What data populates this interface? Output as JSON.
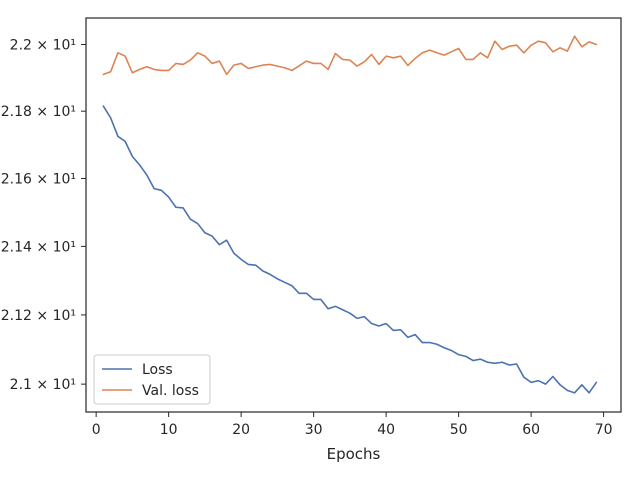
{
  "chart_data": {
    "type": "line",
    "title": "",
    "xlabel": "Epochs",
    "ylabel": "",
    "yscale": "log",
    "xlim": [
      -1.4,
      72.4
    ],
    "ylim": [
      20.92,
      22.08
    ],
    "grid": false,
    "legend_position": "lower-left",
    "x_ticks": [
      0,
      10,
      20,
      30,
      40,
      50,
      60,
      70
    ],
    "x_tick_labels": [
      "0",
      "10",
      "20",
      "30",
      "40",
      "50",
      "60",
      "70"
    ],
    "y_ticks": [
      21.0,
      21.2,
      21.4,
      21.6,
      21.8,
      22.0
    ],
    "y_tick_labels": [
      "2.1 × 10¹",
      "2.12 × 10¹",
      "2.14 × 10¹",
      "2.16 × 10¹",
      "2.18 × 10¹",
      "2.2 × 10¹"
    ],
    "x": [
      1,
      2,
      3,
      4,
      5,
      6,
      7,
      8,
      9,
      10,
      11,
      12,
      13,
      14,
      15,
      16,
      17,
      18,
      19,
      20,
      21,
      22,
      23,
      24,
      25,
      26,
      27,
      28,
      29,
      30,
      31,
      32,
      33,
      34,
      35,
      36,
      37,
      38,
      39,
      40,
      41,
      42,
      43,
      44,
      45,
      46,
      47,
      48,
      49,
      50,
      51,
      52,
      53,
      54,
      55,
      56,
      57,
      58,
      59,
      60,
      61,
      62,
      63,
      64,
      65,
      66,
      67,
      68,
      69
    ],
    "series": [
      {
        "name": "Loss",
        "color": "#4c72b0",
        "values": [
          21.815,
          21.78,
          21.725,
          21.71,
          21.665,
          21.64,
          21.61,
          21.57,
          21.565,
          21.545,
          21.515,
          21.513,
          21.48,
          21.467,
          21.44,
          21.43,
          21.405,
          21.418,
          21.38,
          21.362,
          21.347,
          21.345,
          21.328,
          21.318,
          21.305,
          21.295,
          21.285,
          21.263,
          21.263,
          21.245,
          21.245,
          21.218,
          21.225,
          21.215,
          21.205,
          21.19,
          21.195,
          21.175,
          21.168,
          21.175,
          21.155,
          21.157,
          21.135,
          21.143,
          21.12,
          21.12,
          21.115,
          21.105,
          21.097,
          21.085,
          21.08,
          21.068,
          21.072,
          21.063,
          21.06,
          21.063,
          21.055,
          21.058,
          21.02,
          21.005,
          21.01,
          21.0,
          21.022,
          20.998,
          20.982,
          20.975,
          20.998,
          20.975,
          21.005
        ]
      },
      {
        "name": "Val. loss",
        "color": "#dd8452",
        "values": [
          21.91,
          21.918,
          21.975,
          21.965,
          21.915,
          21.925,
          21.933,
          21.925,
          21.922,
          21.922,
          21.943,
          21.94,
          21.953,
          21.975,
          21.965,
          21.943,
          21.95,
          21.91,
          21.938,
          21.943,
          21.928,
          21.933,
          21.938,
          21.94,
          21.935,
          21.93,
          21.922,
          21.936,
          21.95,
          21.943,
          21.943,
          21.925,
          21.973,
          21.955,
          21.953,
          21.935,
          21.948,
          21.97,
          21.94,
          21.965,
          21.96,
          21.965,
          21.937,
          21.958,
          21.975,
          21.983,
          21.975,
          21.968,
          21.978,
          21.988,
          21.955,
          21.955,
          21.975,
          21.96,
          22.01,
          21.985,
          21.995,
          21.998,
          21.975,
          21.998,
          22.01,
          22.005,
          21.978,
          21.99,
          21.98,
          22.025,
          21.993,
          22.008,
          22.0
        ]
      }
    ]
  }
}
